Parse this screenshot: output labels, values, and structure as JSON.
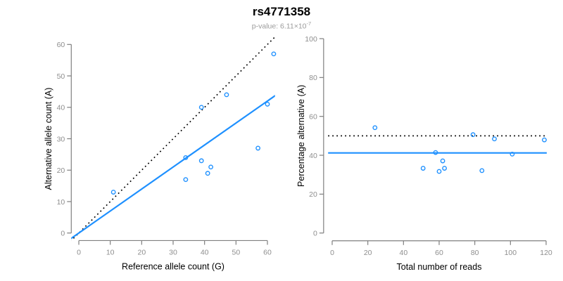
{
  "header": {
    "title": "rs4771358",
    "pvalue_label": "p-value: 6.11×10",
    "pvalue_exponent": "-7"
  },
  "colors": {
    "line_blue": "#1e90ff",
    "point_blue": "#1e90ff",
    "dotted_line": "#000000",
    "axis": "#7f7f7f",
    "tick_label": "#8e8e8e",
    "axis_title": "#000000",
    "title": "#000000",
    "subtitle": "#9b9b9b"
  },
  "chart_data": [
    {
      "type": "scatter",
      "id": "allele-counts",
      "xlabel": "Reference allele count (G)",
      "ylabel": "Alternative allele count (A)",
      "xlim": [
        0,
        60
      ],
      "ylim": [
        0,
        60
      ],
      "xticks": [
        0,
        10,
        20,
        30,
        40,
        50,
        60
      ],
      "yticks": [
        0,
        10,
        20,
        30,
        40,
        50,
        60
      ],
      "grid": false,
      "legend": "none",
      "points": [
        [
          11,
          13
        ],
        [
          34,
          17
        ],
        [
          34,
          24
        ],
        [
          39,
          23
        ],
        [
          39,
          40
        ],
        [
          41,
          19
        ],
        [
          42,
          21
        ],
        [
          47,
          44
        ],
        [
          57,
          27
        ],
        [
          60,
          41
        ],
        [
          62,
          57
        ]
      ],
      "lines": [
        {
          "kind": "abline",
          "slope": 1,
          "intercept": 0,
          "style": "dotted",
          "color": "black"
        },
        {
          "kind": "abline",
          "slope": 0.7,
          "intercept": 0,
          "style": "solid",
          "color": "blue"
        }
      ]
    },
    {
      "type": "scatter",
      "id": "percentage-vs-reads",
      "xlabel": "Total number of reads",
      "ylabel": "Percentage alternative (A)",
      "xlim": [
        0,
        120
      ],
      "ylim": [
        0,
        100
      ],
      "xticks": [
        0,
        20,
        40,
        60,
        80,
        100,
        120
      ],
      "yticks": [
        0,
        20,
        40,
        60,
        80,
        100
      ],
      "grid": false,
      "legend": "none",
      "points": [
        [
          24,
          54.2
        ],
        [
          51,
          33.3
        ],
        [
          58,
          41.4
        ],
        [
          60,
          31.7
        ],
        [
          62,
          37.1
        ],
        [
          63,
          33.3
        ],
        [
          79,
          50.6
        ],
        [
          84,
          32.1
        ],
        [
          91,
          48.4
        ],
        [
          101,
          40.6
        ],
        [
          119,
          47.9
        ]
      ],
      "lines": [
        {
          "kind": "hline",
          "y": 50,
          "style": "dotted",
          "color": "black"
        },
        {
          "kind": "hline",
          "y": 41.2,
          "style": "solid",
          "color": "blue"
        }
      ]
    }
  ]
}
